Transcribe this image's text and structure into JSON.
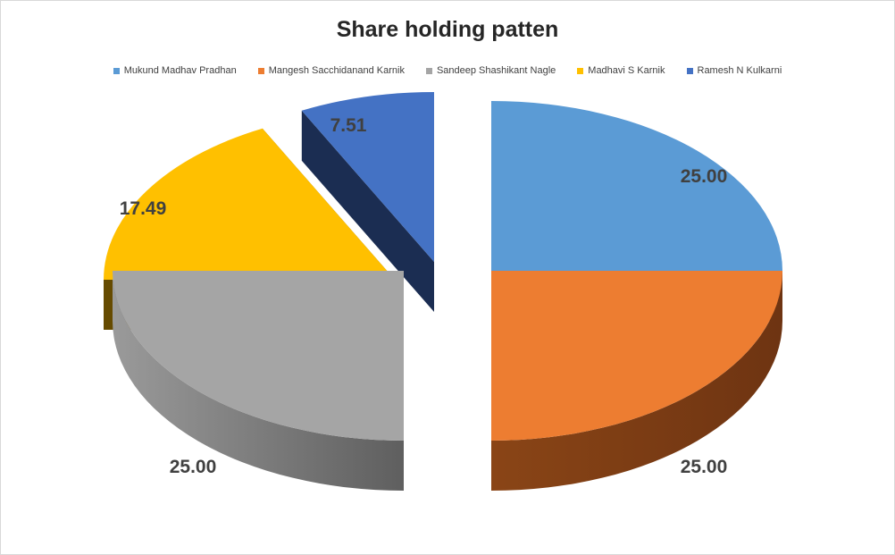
{
  "chart_data": {
    "type": "pie",
    "title": "Share holding patten",
    "legend_position": "top",
    "categories": [
      "Mukund Madhav Pradhan",
      "Mangesh Sacchidanand Karnik",
      "Sandeep Shashikant Nagle",
      "Madhavi S Karnik",
      "Ramesh N Kulkarni"
    ],
    "values": [
      25.0,
      25.0,
      25.0,
      17.49,
      7.51
    ],
    "labels": [
      "25.00",
      "25.00",
      "25.00",
      "17.49",
      "7.51"
    ],
    "colors": [
      "#5B9BD5",
      "#ED7D31",
      "#A5A5A5",
      "#FFC000",
      "#4472C4"
    ],
    "side_colors": [
      "#243F55",
      "#6E3412",
      "#5F5F5F",
      "#664B00",
      "#1B2D52"
    ],
    "style": "3d-exploded"
  }
}
